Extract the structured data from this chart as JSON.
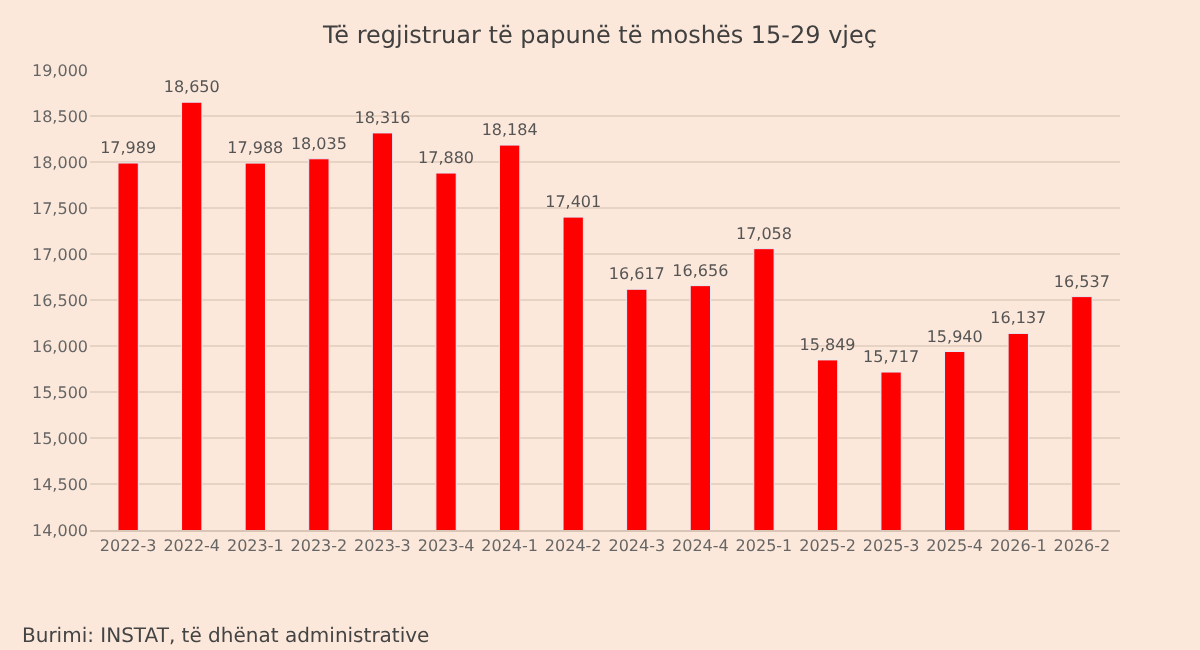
{
  "chart_data": {
    "type": "bar",
    "title": "Të regjistruar të papunë të moshës 15-29 vjeç",
    "categories": [
      "2022-3",
      "2022-4",
      "2023-1",
      "2023-2",
      "2023-3",
      "2023-4",
      "2024-1",
      "2024-2",
      "2024-3",
      "2024-4",
      "2025-1",
      "2025-2",
      "2025-3",
      "2025-4",
      "2026-1",
      "2026-2"
    ],
    "values": [
      17989,
      18650,
      17988,
      18035,
      18316,
      17880,
      18184,
      17401,
      16617,
      16656,
      17058,
      15849,
      15717,
      15940,
      16137,
      16537
    ],
    "value_labels": [
      "17,989",
      "18,650",
      "17,988",
      "18,035",
      "18,316",
      "17,880",
      "18,184",
      "17,401",
      "16,617",
      "16,656",
      "17,058",
      "15,849",
      "15,717",
      "15,940",
      "16,137",
      "16,537"
    ],
    "color": "#ff0000",
    "ylim": [
      14000,
      19000
    ],
    "yticks": [
      {
        "value": 14000,
        "label": "14,000"
      },
      {
        "value": 14500,
        "label": "14,500"
      },
      {
        "value": 15000,
        "label": "15,000"
      },
      {
        "value": 15500,
        "label": "15,500"
      },
      {
        "value": 16000,
        "label": "16,000"
      },
      {
        "value": 16500,
        "label": "16,500"
      },
      {
        "value": 17000,
        "label": "17,000"
      },
      {
        "value": 17500,
        "label": "17,500"
      },
      {
        "value": 18000,
        "label": "18,000"
      },
      {
        "value": 18500,
        "label": "18,500"
      },
      {
        "value": 19000,
        "label": "19,000"
      }
    ],
    "grid": "y",
    "legend": false,
    "annotations": [
      "Burimi: INSTAT, të dhënat administrative"
    ]
  }
}
